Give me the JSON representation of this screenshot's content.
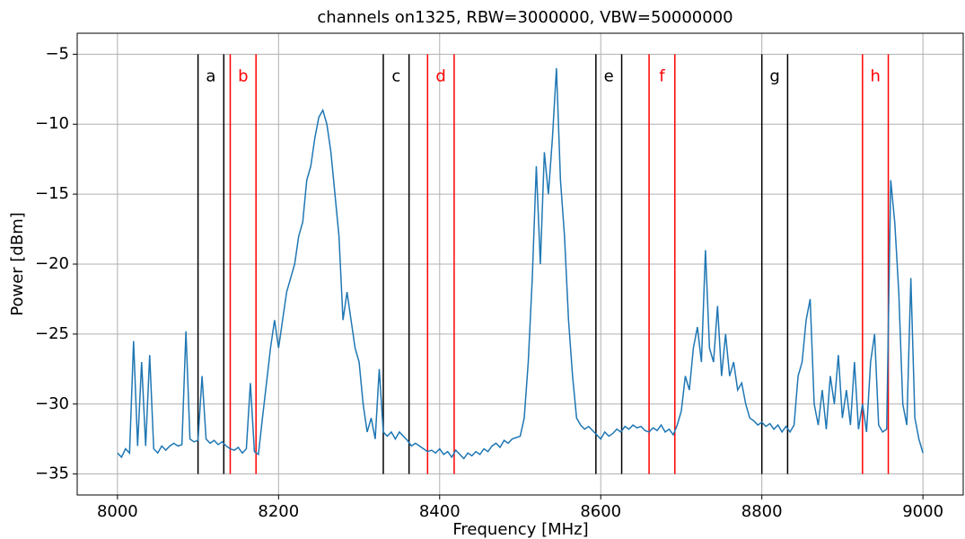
{
  "chart_data": {
    "type": "line",
    "title": "channels on1325, RBW=3000000, VBW=50000000",
    "xlabel": "Frequency [MHz]",
    "ylabel": "Power [dBm]",
    "xlim": [
      7950,
      9050
    ],
    "ylim": [
      -36.5,
      -3.5
    ],
    "xticks": [
      8000,
      8200,
      8400,
      8600,
      8800,
      9000
    ],
    "yticks": [
      {
        "value": -35,
        "label": "−35"
      },
      {
        "value": -30,
        "label": "−30"
      },
      {
        "value": -25,
        "label": "−25"
      },
      {
        "value": -20,
        "label": "−20"
      },
      {
        "value": -15,
        "label": "−15"
      },
      {
        "value": -10,
        "label": "−10"
      },
      {
        "value": -5,
        "label": "−5"
      }
    ],
    "grid": true,
    "channels": [
      {
        "label": "a",
        "color": "#000000",
        "lines": [
          8100,
          8132
        ]
      },
      {
        "label": "b",
        "color": "#ff0000",
        "lines": [
          8140,
          8172
        ]
      },
      {
        "label": "c",
        "color": "#000000",
        "lines": [
          8330,
          8362
        ]
      },
      {
        "label": "d",
        "color": "#ff0000",
        "lines": [
          8385,
          8418
        ]
      },
      {
        "label": "e",
        "color": "#000000",
        "lines": [
          8594,
          8626
        ]
      },
      {
        "label": "f",
        "color": "#ff0000",
        "lines": [
          8660,
          8692
        ]
      },
      {
        "label": "g",
        "color": "#000000",
        "lines": [
          8800,
          8832
        ]
      },
      {
        "label": "h",
        "color": "#ff0000",
        "lines": [
          8925,
          8957
        ]
      }
    ],
    "x": [
      8000,
      8005,
      8010,
      8015,
      8020,
      8025,
      8030,
      8035,
      8040,
      8045,
      8050,
      8055,
      8060,
      8065,
      8070,
      8075,
      8080,
      8085,
      8090,
      8095,
      8100,
      8105,
      8110,
      8115,
      8120,
      8125,
      8130,
      8135,
      8140,
      8145,
      8150,
      8155,
      8160,
      8165,
      8170,
      8175,
      8180,
      8185,
      8190,
      8195,
      8200,
      8205,
      8210,
      8215,
      8220,
      8225,
      8230,
      8235,
      8240,
      8245,
      8250,
      8255,
      8260,
      8265,
      8270,
      8275,
      8280,
      8285,
      8290,
      8295,
      8300,
      8305,
      8310,
      8315,
      8320,
      8325,
      8330,
      8335,
      8340,
      8345,
      8350,
      8355,
      8360,
      8365,
      8370,
      8375,
      8380,
      8385,
      8390,
      8395,
      8400,
      8405,
      8410,
      8415,
      8420,
      8425,
      8430,
      8435,
      8440,
      8445,
      8450,
      8455,
      8460,
      8465,
      8470,
      8475,
      8480,
      8485,
      8490,
      8495,
      8500,
      8505,
      8510,
      8515,
      8520,
      8525,
      8530,
      8535,
      8540,
      8545,
      8550,
      8555,
      8560,
      8565,
      8570,
      8575,
      8580,
      8585,
      8590,
      8595,
      8600,
      8605,
      8610,
      8615,
      8620,
      8625,
      8630,
      8635,
      8640,
      8645,
      8650,
      8655,
      8660,
      8665,
      8670,
      8675,
      8680,
      8685,
      8690,
      8695,
      8700,
      8705,
      8710,
      8715,
      8720,
      8725,
      8730,
      8735,
      8740,
      8745,
      8750,
      8755,
      8760,
      8765,
      8770,
      8775,
      8780,
      8785,
      8790,
      8795,
      8800,
      8805,
      8810,
      8815,
      8820,
      8825,
      8830,
      8835,
      8840,
      8845,
      8850,
      8855,
      8860,
      8865,
      8870,
      8875,
      8880,
      8885,
      8890,
      8895,
      8900,
      8905,
      8910,
      8915,
      8920,
      8925,
      8930,
      8935,
      8940,
      8945,
      8950,
      8955,
      8960,
      8965,
      8970,
      8975,
      8980,
      8985,
      8990,
      8995,
      9000
    ],
    "series": [
      {
        "color": "#1f77b4",
        "values": [
          -33.5,
          -33.8,
          -33.2,
          -33.5,
          -25.5,
          -33,
          -27,
          -33,
          -26.5,
          -33.2,
          -33.5,
          -33,
          -33.3,
          -33,
          -32.8,
          -33,
          -32.9,
          -24.8,
          -32.5,
          -32.7,
          -32.6,
          -28,
          -32.5,
          -32.8,
          -32.6,
          -32.9,
          -32.7,
          -33,
          -33.2,
          -33.3,
          -33.1,
          -33.5,
          -33.2,
          -28.5,
          -33.4,
          -33.6,
          -31,
          -28.5,
          -26,
          -24,
          -26,
          -24,
          -22,
          -21,
          -20,
          -18,
          -17,
          -14,
          -13,
          -11,
          -9.5,
          -9,
          -10,
          -12,
          -15,
          -18,
          -24,
          -22,
          -24,
          -26,
          -27,
          -30,
          -32,
          -31,
          -32.5,
          -27.5,
          -32,
          -32.3,
          -32,
          -32.5,
          -32,
          -32.3,
          -32.6,
          -33,
          -32.8,
          -33,
          -33.2,
          -33.4,
          -33.3,
          -33.5,
          -33.2,
          -33.6,
          -33.4,
          -33.8,
          -33.3,
          -33.6,
          -33.9,
          -33.5,
          -33.7,
          -33.4,
          -33.6,
          -33.2,
          -33.4,
          -33,
          -32.8,
          -33.1,
          -32.6,
          -32.8,
          -32.5,
          -32.4,
          -32.3,
          -31,
          -27,
          -21,
          -13,
          -20,
          -12,
          -15,
          -11,
          -6,
          -14,
          -18,
          -24,
          -28,
          -31,
          -31.5,
          -31.8,
          -31.6,
          -31.9,
          -32.2,
          -32.5,
          -32,
          -32.3,
          -32.1,
          -31.8,
          -32,
          -31.6,
          -31.8,
          -31.5,
          -31.7,
          -31.6,
          -31.9,
          -32,
          -31.7,
          -31.9,
          -31.5,
          -32,
          -31.8,
          -32.2,
          -31.5,
          -30.5,
          -28,
          -29,
          -26,
          -24.5,
          -27,
          -19,
          -26,
          -27,
          -23,
          -28,
          -25,
          -28,
          -27,
          -29,
          -28.5,
          -30,
          -31,
          -31.2,
          -31.5,
          -31.3,
          -31.6,
          -31.4,
          -31.8,
          -31.5,
          -32,
          -31.6,
          -32,
          -31.5,
          -28,
          -27,
          -24,
          -22.5,
          -30,
          -31.5,
          -29,
          -31.8,
          -28,
          -30,
          -26.5,
          -31,
          -29,
          -31.5,
          -27,
          -31.8,
          -30,
          -32,
          -27,
          -25,
          -31.5,
          -32,
          -31.8,
          -14,
          -17,
          -22,
          -30,
          -31.5,
          -21,
          -31,
          -32.5,
          -33.5
        ]
      }
    ]
  }
}
